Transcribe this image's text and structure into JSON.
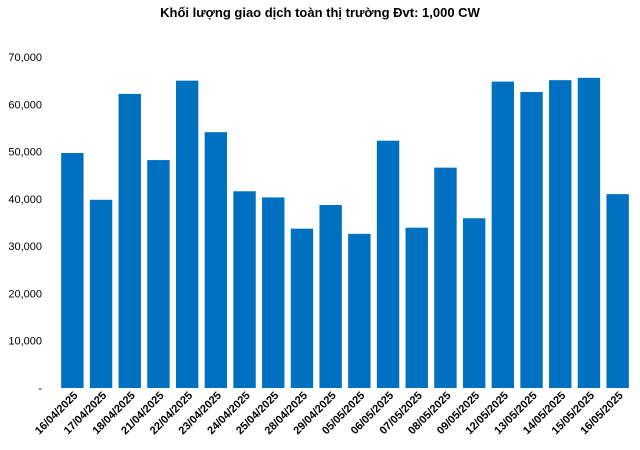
{
  "chart_data": {
    "type": "bar",
    "title": "Khối lượng giao dịch toàn thị trường Đvt: 1,000 CW",
    "xlabel": "",
    "ylabel": "",
    "ylim": [
      0,
      70000
    ],
    "y_ticks": [
      "-",
      "10,000",
      "20,000",
      "30,000",
      "40,000",
      "50,000",
      "60,000",
      "70,000"
    ],
    "categories": [
      "16/04/2025",
      "17/04/2025",
      "18/04/2025",
      "21/04/2025",
      "22/04/2025",
      "23/04/2025",
      "24/04/2025",
      "25/04/2025",
      "28/04/2025",
      "29/04/2025",
      "05/05/2025",
      "06/05/2025",
      "07/05/2025",
      "08/05/2025",
      "09/05/2025",
      "12/05/2025",
      "13/05/2025",
      "14/05/2025",
      "15/05/2025",
      "16/05/2025"
    ],
    "values": [
      49700,
      39800,
      62200,
      48200,
      65000,
      54100,
      41600,
      40300,
      33700,
      38700,
      32600,
      52300,
      33900,
      46600,
      35900,
      64800,
      62600,
      65100,
      65600,
      41000
    ],
    "bar_color": "#0070C0",
    "grid": false,
    "legend": "none"
  }
}
